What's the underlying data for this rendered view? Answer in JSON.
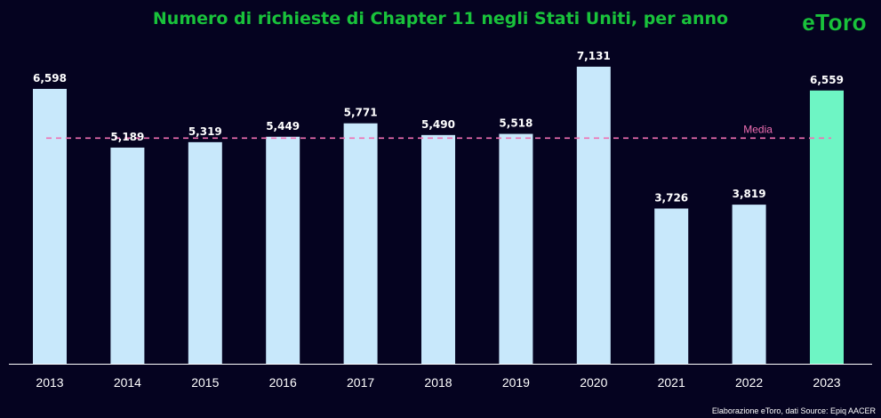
{
  "header": {
    "logo_text": "eToro"
  },
  "footer": {
    "source": "Elaborazione eToro, dati Source: Epiq AACER"
  },
  "colors": {
    "background": "#050320",
    "title": "#19c23b",
    "bar": "#c8e8fb",
    "bar_highlight": "#6ef5c4",
    "average_line": "#f06fb3",
    "axis": "#ffffff"
  },
  "chart_data": {
    "type": "bar",
    "title": "Numero di richieste di Chapter 11  negli Stati Uniti, per anno",
    "xlabel": "",
    "ylabel": "",
    "categories": [
      "2013",
      "2014",
      "2015",
      "2016",
      "2017",
      "2018",
      "2019",
      "2020",
      "2021",
      "2022",
      "2023"
    ],
    "series": [
      {
        "values": [
          6598,
          5189,
          5319,
          5449,
          5771,
          5490,
          5518,
          7131,
          3726,
          3819,
          6559
        ],
        "value_labels": [
          "6,598",
          "5,189",
          "5,319",
          "5,449",
          "5,771",
          "5,490",
          "5,518",
          "7,131",
          "3,726",
          "3,819",
          "6,559"
        ]
      }
    ],
    "highlighted_category": "2023",
    "average_line": {
      "label": "Media",
      "value": 5415
    },
    "ylim": [
      0,
      7600
    ],
    "grid": false,
    "legend": "none"
  }
}
